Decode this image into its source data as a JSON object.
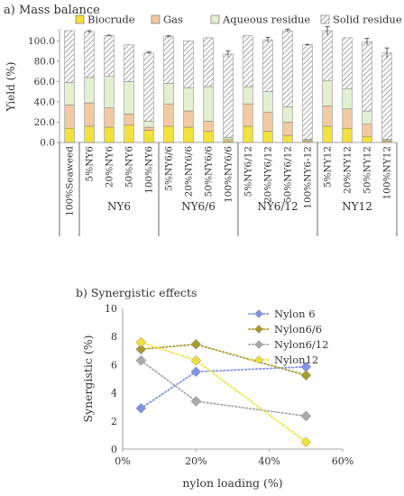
{
  "panel_a": {
    "title": "a) Mass balance",
    "chart_data": {
      "type": "bar",
      "stacked": true,
      "ylabel": "Yield (%)",
      "ylim": [
        0,
        110
      ],
      "yticks": [
        "0.0",
        "20.0",
        "40.0",
        "60.0",
        "80.0",
        "100.0"
      ],
      "categories": [
        "100%Seaweed",
        "5%NY6",
        "20%NY6",
        "50%NY6",
        "100%NY6",
        "5%NY6/6",
        "20%NY6/6",
        "50%NY6/6",
        "100%NY6/6",
        "5%NY6/12",
        "20%NY6/12",
        "50%NY6/12",
        "100%NY6-12",
        "5%NY12",
        "20%NY12",
        "50%NY12",
        "100%NY12"
      ],
      "groups": [
        {
          "label": "NY6",
          "from": 1,
          "to": 4
        },
        {
          "label": "NY6/6",
          "from": 5,
          "to": 8
        },
        {
          "label": "NY6/12",
          "from": 9,
          "to": 12
        },
        {
          "label": "NY12",
          "from": 13,
          "to": 16
        }
      ],
      "series": [
        {
          "name": "Biocrude",
          "color": "#f2e23a",
          "values": [
            14,
            16,
            15,
            17,
            12,
            16,
            15,
            11,
            1,
            16,
            11,
            7,
            1,
            16,
            14,
            6,
            1
          ]
        },
        {
          "name": "Gas",
          "color": "#f2c9a0",
          "values": [
            23,
            23,
            19,
            11,
            3,
            22,
            16,
            10,
            2,
            22,
            19,
            13,
            1,
            20,
            19,
            12,
            1
          ]
        },
        {
          "name": "Aqueous residue",
          "color": "#e2efd0",
          "values": [
            22,
            25,
            31,
            32,
            6,
            20,
            23,
            34,
            2,
            17,
            20,
            15,
            1,
            25,
            20,
            13,
            1
          ]
        },
        {
          "name": "Solid residue",
          "color": "#ffffff",
          "values": [
            51,
            45,
            40,
            36,
            67,
            46,
            46,
            48,
            82,
            50,
            51,
            75,
            93,
            49,
            50,
            68,
            85
          ]
        }
      ],
      "error_top": [
        0,
        1,
        0.5,
        0,
        1,
        1,
        0,
        0,
        3,
        0,
        2.5,
        1.5,
        0.5,
        4,
        0,
        3.5,
        5
      ],
      "legend": "top"
    }
  },
  "panel_b": {
    "title": "b) Synergistic effects",
    "chart_data": {
      "type": "line",
      "xlabel": "nylon loading (%)",
      "ylabel": "Synergistic (%)",
      "xlim": [
        0,
        60
      ],
      "ylim": [
        0,
        10
      ],
      "xticks": [
        "0%",
        "20%",
        "40%",
        "60%"
      ],
      "yticks": [
        "0",
        "2",
        "4",
        "6",
        "8",
        "10"
      ],
      "x": [
        5,
        20,
        50
      ],
      "series": [
        {
          "name": "Nylon 6",
          "color": "#7f93e6",
          "values": [
            2.9,
            5.5,
            5.85
          ]
        },
        {
          "name": "Nylon6/6",
          "color": "#a69a2e",
          "values": [
            7.1,
            7.45,
            5.25
          ]
        },
        {
          "name": "Nylon6/12",
          "color": "#a9a9a9",
          "values": [
            6.3,
            3.4,
            2.35
          ]
        },
        {
          "name": "Nylon12",
          "color": "#f0e039",
          "values": [
            7.6,
            6.3,
            0.5
          ]
        }
      ],
      "legend": "top-right"
    }
  }
}
